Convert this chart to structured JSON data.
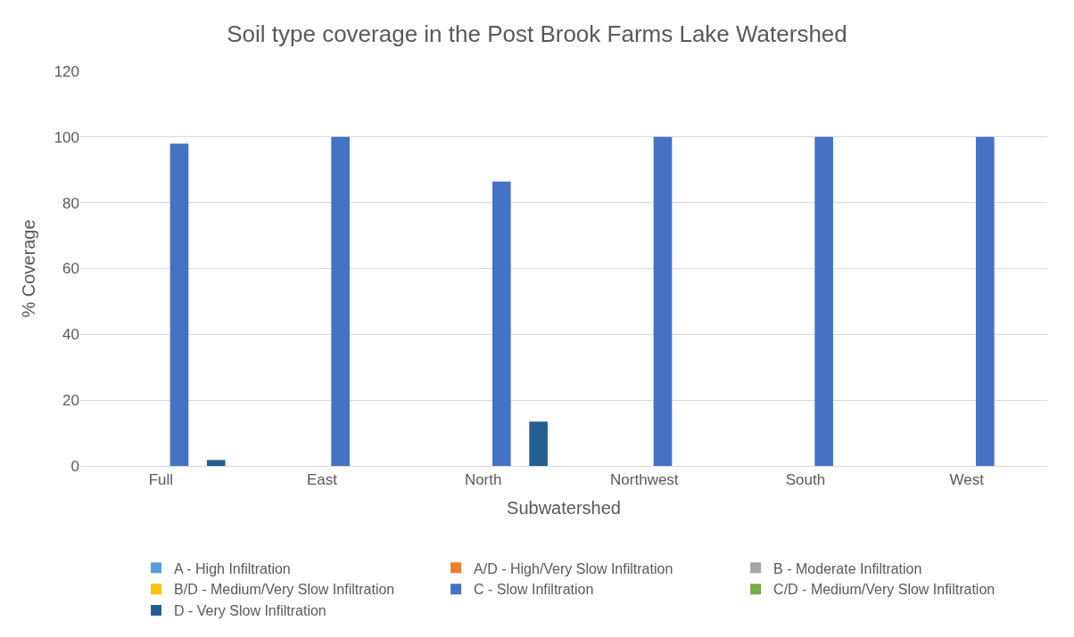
{
  "chart_data": {
    "type": "bar",
    "title": "Soil type coverage in the Post Brook Farms Lake Watershed",
    "xlabel": "Subwatershed",
    "ylabel": "% Coverage",
    "categories": [
      "Full",
      "East",
      "North",
      "Northwest",
      "South",
      "West"
    ],
    "series": [
      {
        "name": "A - High Infiltration",
        "color": "#5b9bd5",
        "values": [
          0,
          0,
          0,
          0,
          0,
          0
        ]
      },
      {
        "name": "A/D - High/Very Slow Infiltration",
        "color": "#ed7d31",
        "values": [
          0,
          0,
          0,
          0,
          0,
          0
        ]
      },
      {
        "name": "B - Moderate Infiltration",
        "color": "#a5a5a5",
        "values": [
          0,
          0,
          0,
          0,
          0,
          0
        ]
      },
      {
        "name": "B/D - Medium/Very Slow Infiltration",
        "color": "#ffc000",
        "values": [
          0,
          0,
          0,
          0,
          0,
          0
        ]
      },
      {
        "name": "C - Slow Infiltration",
        "color": "#4472c4",
        "values": [
          98,
          100,
          86.5,
          100,
          100,
          100
        ]
      },
      {
        "name": "C/D - Medium/Very Slow Infiltration",
        "color": "#70ad47",
        "values": [
          0,
          0,
          0,
          0,
          0,
          0
        ]
      },
      {
        "name": "D - Very Slow Infiltration",
        "color": "#255e91",
        "values": [
          1.8,
          0,
          13.5,
          0,
          0,
          0
        ]
      }
    ],
    "ylim": [
      0,
      120
    ],
    "yticks": [
      0,
      20,
      40,
      60,
      80,
      100,
      120
    ],
    "grid": "y",
    "legend": "bottom"
  }
}
